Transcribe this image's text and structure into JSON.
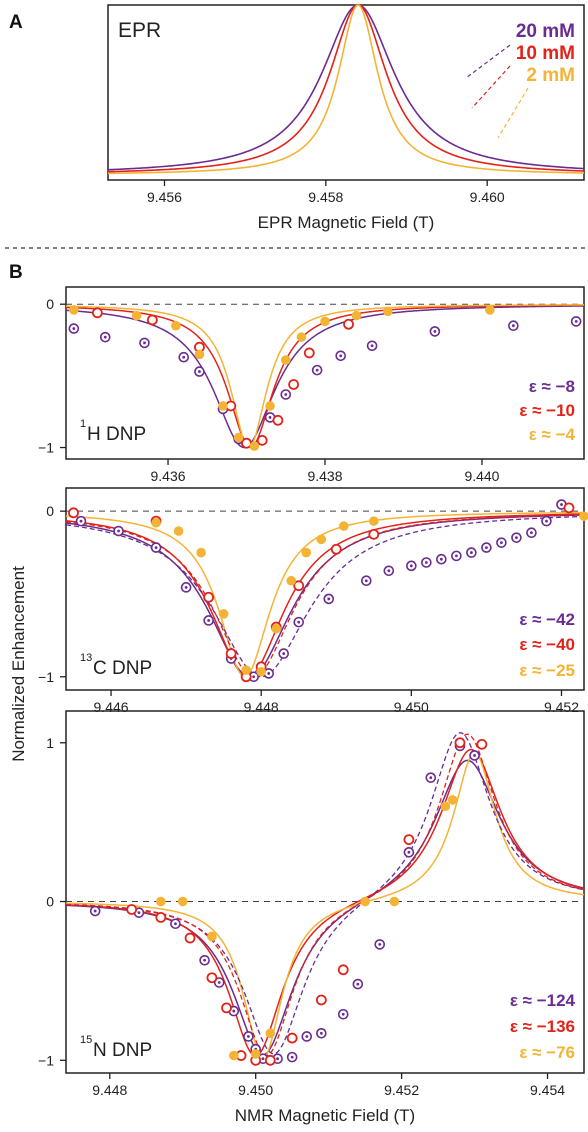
{
  "colors": {
    "c20": "#6a2c91",
    "c10": "#e2231a",
    "c2": "#f5b335"
  },
  "panel_labels": {
    "a": "A",
    "b": "B"
  },
  "concentrations": [
    "20 mM",
    "10 mM",
    "2 mM"
  ],
  "shared_labels": {
    "ylabel": "Normalized Enhancement",
    "xlabel_nmr": "NMR Magnetic Field (T)"
  },
  "chart_data": [
    {
      "type": "line",
      "id": "epr",
      "title": "EPR",
      "xlabel": "EPR Magnetic Field (T)",
      "ylabel": "",
      "xlim": [
        9.4553,
        9.4612
      ],
      "ylim": [
        -0.03,
        1.0
      ],
      "xticks": [
        9.456,
        9.458,
        9.46
      ],
      "xtick_labels": [
        "9.456",
        "9.458",
        "9.460"
      ],
      "center": 9.4584,
      "series": [
        {
          "name": "20 mM",
          "color": "#6a2c91",
          "halfwidth": 0.00055
        },
        {
          "name": "10 mM",
          "color": "#e2231a",
          "halfwidth": 0.00043
        },
        {
          "name": "2 mM",
          "color": "#f5b335",
          "halfwidth": 0.0003
        }
      ]
    },
    {
      "type": "line",
      "id": "h1",
      "label_prefix": "1",
      "label_text": "H DNP",
      "xlim": [
        9.4347,
        9.4413
      ],
      "ylim": [
        -1.08,
        0.12
      ],
      "xticks": [
        9.436,
        9.438,
        9.44
      ],
      "xtick_labels": [
        "9.436",
        "9.438",
        "9.440"
      ],
      "yticks": [
        0,
        -1
      ],
      "ytick_labels": [
        "0",
        "−1"
      ],
      "epsilons": [
        "ε ≈   −8",
        "ε ≈ −10",
        "ε ≈   −4"
      ],
      "fits": [
        {
          "color": "#6a2c91",
          "shape": "dip",
          "center": 9.43697,
          "halfwidth": 0.00048
        },
        {
          "color": "#e2231a",
          "shape": "dip",
          "center": 9.43705,
          "halfwidth": 0.00036
        },
        {
          "color": "#f5b335",
          "shape": "dip",
          "center": 9.43703,
          "halfwidth": 0.00028
        }
      ],
      "points": [
        {
          "color": "#6a2c91",
          "style": "dot",
          "x": [
            9.4348,
            9.4352,
            9.4357,
            9.4362,
            9.4364,
            9.4367,
            9.4369,
            9.437,
            9.4373,
            9.4375,
            9.4379,
            9.4382,
            9.4386,
            9.4394,
            9.4404,
            9.4412
          ],
          "y": [
            -0.17,
            -0.23,
            -0.27,
            -0.37,
            -0.47,
            -0.73,
            -0.94,
            -0.97,
            -0.79,
            -0.63,
            -0.46,
            -0.36,
            -0.29,
            -0.19,
            -0.15,
            -0.12
          ]
        },
        {
          "color": "#e2231a",
          "style": "open",
          "x": [
            9.4351,
            9.4358,
            9.4364,
            9.4368,
            9.437,
            9.4372,
            9.4374,
            9.4376,
            9.4378,
            9.4383
          ],
          "y": [
            -0.06,
            -0.11,
            -0.3,
            -0.71,
            -0.97,
            -0.95,
            -0.81,
            -0.56,
            -0.34,
            -0.14
          ]
        },
        {
          "color": "#f5b335",
          "style": "filled",
          "x": [
            9.4348,
            9.4356,
            9.4361,
            9.4364,
            9.4367,
            9.4369,
            9.4371,
            9.4373,
            9.4375,
            9.4377,
            9.438,
            9.4384,
            9.4388,
            9.4401
          ],
          "y": [
            -0.04,
            -0.08,
            -0.15,
            -0.35,
            -0.71,
            -0.93,
            -0.99,
            -0.71,
            -0.39,
            -0.23,
            -0.12,
            -0.08,
            -0.05,
            -0.04
          ]
        }
      ]
    },
    {
      "type": "line",
      "id": "c13",
      "label_prefix": "13",
      "label_text": "C DNP",
      "xlim": [
        9.4454,
        9.4523
      ],
      "ylim": [
        -1.08,
        0.14
      ],
      "xticks": [
        9.446,
        9.448,
        9.45,
        9.452
      ],
      "xtick_labels": [
        "9.446",
        "9.448",
        "9.450",
        "9.452"
      ],
      "yticks": [
        0,
        -1
      ],
      "ytick_labels": [
        "0",
        "−1"
      ],
      "epsilons": [
        "ε ≈ −42",
        "ε ≈ −40",
        "ε ≈ −25"
      ],
      "fits": [
        {
          "color": "#6a2c91",
          "shape": "dip",
          "center": 9.44785,
          "halfwidth": 0.00068,
          "dashed": false
        },
        {
          "color": "#e2231a",
          "shape": "dip",
          "center": 9.44782,
          "halfwidth": 0.0006,
          "dashed": false
        },
        {
          "color": "#f5b335",
          "shape": "dip",
          "center": 9.44778,
          "halfwidth": 0.00042,
          "dashed": false
        },
        {
          "color": "#6a2c91",
          "shape": "dip",
          "center": 9.448,
          "halfwidth": 0.00078,
          "dashed": true
        },
        {
          "color": "#e2231a",
          "shape": "dip",
          "center": 9.4479,
          "halfwidth": 0.00065,
          "dashed": true
        }
      ],
      "points": [
        {
          "color": "#6a2c91",
          "style": "dot",
          "x": [
            9.4456,
            9.4461,
            9.4466,
            9.447,
            9.4473,
            9.4476,
            9.4479,
            9.4481,
            9.4483,
            9.4485,
            9.4489,
            9.4494,
            9.4497,
            9.45,
            9.4502,
            9.4504,
            9.4506,
            9.4508,
            9.451,
            9.4512,
            9.4514,
            9.4516,
            9.4518,
            9.452
          ],
          "y": [
            -0.06,
            -0.12,
            -0.22,
            -0.46,
            -0.66,
            -0.89,
            -1.0,
            -0.98,
            -0.86,
            -0.67,
            -0.53,
            -0.42,
            -0.36,
            -0.33,
            -0.31,
            -0.29,
            -0.27,
            -0.25,
            -0.22,
            -0.19,
            -0.16,
            -0.13,
            -0.06,
            0.04
          ]
        },
        {
          "color": "#e2231a",
          "style": "open",
          "x": [
            9.4455,
            9.4466,
            9.4473,
            9.4476,
            9.4478,
            9.448,
            9.4482,
            9.4485,
            9.449,
            9.4495,
            9.4521
          ],
          "y": [
            -0.01,
            -0.06,
            -0.52,
            -0.86,
            -1.0,
            -0.94,
            -0.7,
            -0.45,
            -0.23,
            -0.14,
            0.02
          ]
        },
        {
          "color": "#f5b335",
          "style": "filled",
          "x": [
            9.4466,
            9.4469,
            9.4472,
            9.4475,
            9.4478,
            9.448,
            9.4482,
            9.4484,
            9.4486,
            9.4488,
            9.4491,
            9.4495,
            9.4523
          ],
          "y": [
            -0.07,
            -0.12,
            -0.25,
            -0.62,
            -0.96,
            -0.97,
            -0.71,
            -0.42,
            -0.25,
            -0.17,
            -0.09,
            -0.06,
            -0.03
          ]
        }
      ]
    },
    {
      "type": "line",
      "id": "n15",
      "label_prefix": "15",
      "label_text": "N DNP",
      "xlim": [
        9.4474,
        9.4545
      ],
      "ylim": [
        -1.08,
        1.2
      ],
      "xticks": [
        9.448,
        9.45,
        9.452,
        9.454
      ],
      "xtick_labels": [
        "9.448",
        "9.450",
        "9.452",
        "9.454"
      ],
      "yticks": [
        1,
        0,
        -1
      ],
      "ytick_labels": [
        "1",
        "0",
        "−1"
      ],
      "xlabel": "NMR Magnetic Field (T)",
      "epsilons": [
        "ε ≈ −124",
        "ε ≈ −136",
        "ε ≈   −76"
      ],
      "fits": [
        {
          "color": "#6a2c91",
          "shape": "disp",
          "c1": 9.4501,
          "c2": 9.4529,
          "w1": 0.0005,
          "w2": 0.00055,
          "a2": 0.92,
          "dashed": false
        },
        {
          "color": "#e2231a",
          "shape": "disp",
          "c1": 9.45,
          "c2": 9.45295,
          "w1": 0.00045,
          "w2": 0.0005,
          "a2": 0.98,
          "dashed": false
        },
        {
          "color": "#f5b335",
          "shape": "disp",
          "c1": 9.4501,
          "c2": 9.453,
          "w1": 0.00033,
          "w2": 0.00035,
          "a2": 0.95,
          "dashed": false
        },
        {
          "color": "#6a2c91",
          "shape": "disp",
          "c1": 9.45025,
          "c2": 9.4528,
          "w1": 0.0005,
          "w2": 0.0005,
          "a2": 1.1,
          "dashed": true
        },
        {
          "color": "#e2231a",
          "shape": "disp",
          "c1": 9.45015,
          "c2": 9.4529,
          "w1": 0.00045,
          "w2": 0.00047,
          "a2": 1.08,
          "dashed": true
        }
      ],
      "points": [
        {
          "color": "#6a2c91",
          "style": "dot",
          "x": [
            9.4478,
            9.4484,
            9.4489,
            9.4493,
            9.4495,
            9.4497,
            9.4499,
            9.45,
            9.4501,
            9.4503,
            9.4505,
            9.4507,
            9.4509,
            9.4512,
            9.4514,
            9.4517,
            9.4521,
            9.4524,
            9.4528,
            9.453
          ],
          "y": [
            -0.06,
            -0.07,
            -0.14,
            -0.37,
            -0.51,
            -0.69,
            -0.85,
            -0.93,
            -0.99,
            -0.99,
            -0.98,
            -0.85,
            -0.83,
            -0.71,
            -0.52,
            -0.27,
            0.31,
            0.78,
            0.98,
            0.92
          ]
        },
        {
          "color": "#e2231a",
          "style": "open",
          "x": [
            9.4483,
            9.4487,
            9.4491,
            9.4494,
            9.4496,
            9.4498,
            9.45,
            9.4502,
            9.4505,
            9.4509,
            9.4512,
            9.4521,
            9.4528,
            9.4531
          ],
          "y": [
            -0.05,
            -0.1,
            -0.23,
            -0.48,
            -0.67,
            -0.97,
            -1.0,
            -1.0,
            -0.86,
            -0.62,
            -0.43,
            0.39,
            1.0,
            0.99
          ]
        },
        {
          "color": "#f5b335",
          "style": "filled",
          "x": [
            9.4487,
            9.449,
            9.4494,
            9.4497,
            9.45,
            9.4502,
            9.4515,
            9.4519,
            9.4526,
            9.4527
          ],
          "y": [
            0.0,
            0.0,
            -0.22,
            -0.97,
            -0.96,
            -0.83,
            0.0,
            0.0,
            0.6,
            0.64
          ]
        }
      ]
    }
  ]
}
